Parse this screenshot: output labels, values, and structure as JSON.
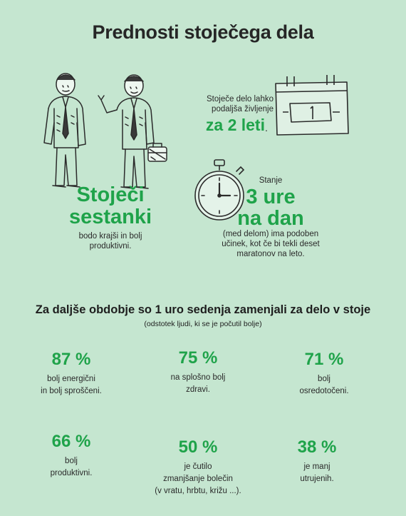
{
  "title": "Prednosti stoječega dela",
  "meetings": {
    "headline_line1": "Stoječi",
    "headline_line2": "sestanki",
    "description_line1": "bodo krajši in bolj",
    "description_line2": "produktivni."
  },
  "life": {
    "text_line1": "Stoječe delo lahko",
    "text_line2": "podaljša življenje",
    "headline": "za 2 leti",
    "dot": ".",
    "calendar_number": "1"
  },
  "standing": {
    "label": "Stanje",
    "headline_line1": "3 ure",
    "headline_line2": "na dan",
    "description_line1": "(med delom) ima podoben",
    "description_line2": "učinek, kot če bi tekli deset",
    "description_line3": "maratonov na leto."
  },
  "section": {
    "title": "Za daljše obdobje so 1 uro sedenja zamenjali za delo v stoje",
    "subtitle": "(odstotek ljudi, ki se je počutil bolje)"
  },
  "stats": [
    {
      "value": "87 %",
      "label_line1": "bolj energični",
      "label_line2": "in bolj sproščeni.",
      "label_line3": ""
    },
    {
      "value": "75 %",
      "label_line1": "na splošno bolj",
      "label_line2": "zdravi.",
      "label_line3": ""
    },
    {
      "value": "71 %",
      "label_line1": "bolj",
      "label_line2": "osredotočeni.",
      "label_line3": ""
    },
    {
      "value": "66 %",
      "label_line1": "bolj",
      "label_line2": "produktivni.",
      "label_line3": ""
    },
    {
      "value": "50 %",
      "label_line1": "je čutilo",
      "label_line2": "zmanjšanje bolečin",
      "label_line3": "(v vratu, hrbtu, križu ...)."
    },
    {
      "value": "38 %",
      "label_line1": "je manj",
      "label_line2": "utrujenih.",
      "label_line3": ""
    }
  ]
}
